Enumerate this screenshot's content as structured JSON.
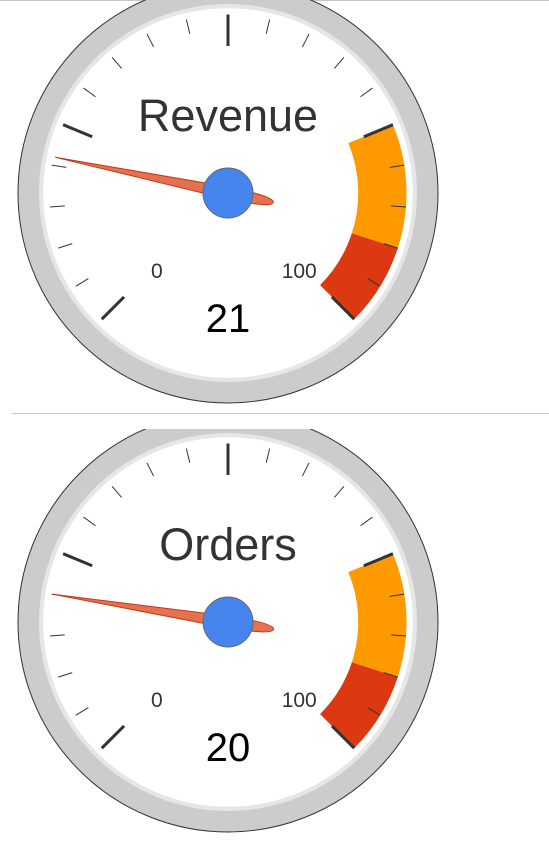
{
  "colors": {
    "bezel": "#cccccc",
    "inner_ring": "#e6e6e6",
    "face": "#ffffff",
    "needle": "#e6714f",
    "needle_stroke": "#c0391b",
    "hub": "#4684ee",
    "yellow_band": "#ff9900",
    "red_band": "#dc3912"
  },
  "chart_data": [
    {
      "type": "gauge",
      "label": "Revenue",
      "value": 21,
      "display_value": "21",
      "min": 0,
      "max": 100,
      "min_label": "0",
      "max_label": "100",
      "major_ticks": 5,
      "minor_ticks": 5,
      "bands": [
        {
          "from": 75,
          "to": 90,
          "color": "yellow"
        },
        {
          "from": 90,
          "to": 100,
          "color": "red"
        }
      ]
    },
    {
      "type": "gauge",
      "label": "Orders",
      "value": 20,
      "display_value": "20",
      "min": 0,
      "max": 100,
      "min_label": "0",
      "max_label": "100",
      "major_ticks": 5,
      "minor_ticks": 5,
      "bands": [
        {
          "from": 75,
          "to": 90,
          "color": "yellow"
        },
        {
          "from": 90,
          "to": 100,
          "color": "red"
        }
      ]
    }
  ]
}
